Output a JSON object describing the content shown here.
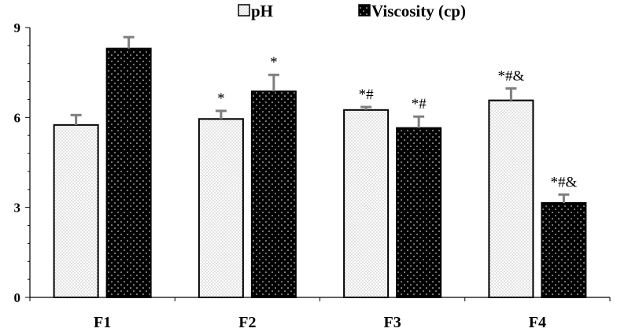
{
  "chart_data": {
    "type": "bar",
    "title": "",
    "xlabel": "",
    "ylabel": "",
    "ylim": [
      0,
      9
    ],
    "yticks": [
      0,
      3,
      6,
      9
    ],
    "grid": false,
    "legend_position": "top",
    "categories": [
      "F1",
      "F2",
      "F3",
      "F4"
    ],
    "series": [
      {
        "name": "pH",
        "pattern": "light-dotted",
        "fill": "#ffffff",
        "dot_color": "#9a9a9a",
        "values": [
          5.75,
          5.95,
          6.25,
          6.57
        ],
        "errors": [
          0.33,
          0.27,
          0.1,
          0.4
        ],
        "annotations": [
          "",
          "*",
          "*#",
          "*#&"
        ]
      },
      {
        "name": "Viscosity (cp)",
        "pattern": "dark-dotted",
        "fill": "#000000",
        "dot_color": "#ffffff",
        "values": [
          8.3,
          6.87,
          5.65,
          3.15
        ],
        "errors": [
          0.38,
          0.55,
          0.38,
          0.28
        ],
        "annotations": [
          "",
          "*",
          "*#",
          "*#&"
        ]
      }
    ],
    "error_bar_color": "#7f7f7f"
  }
}
